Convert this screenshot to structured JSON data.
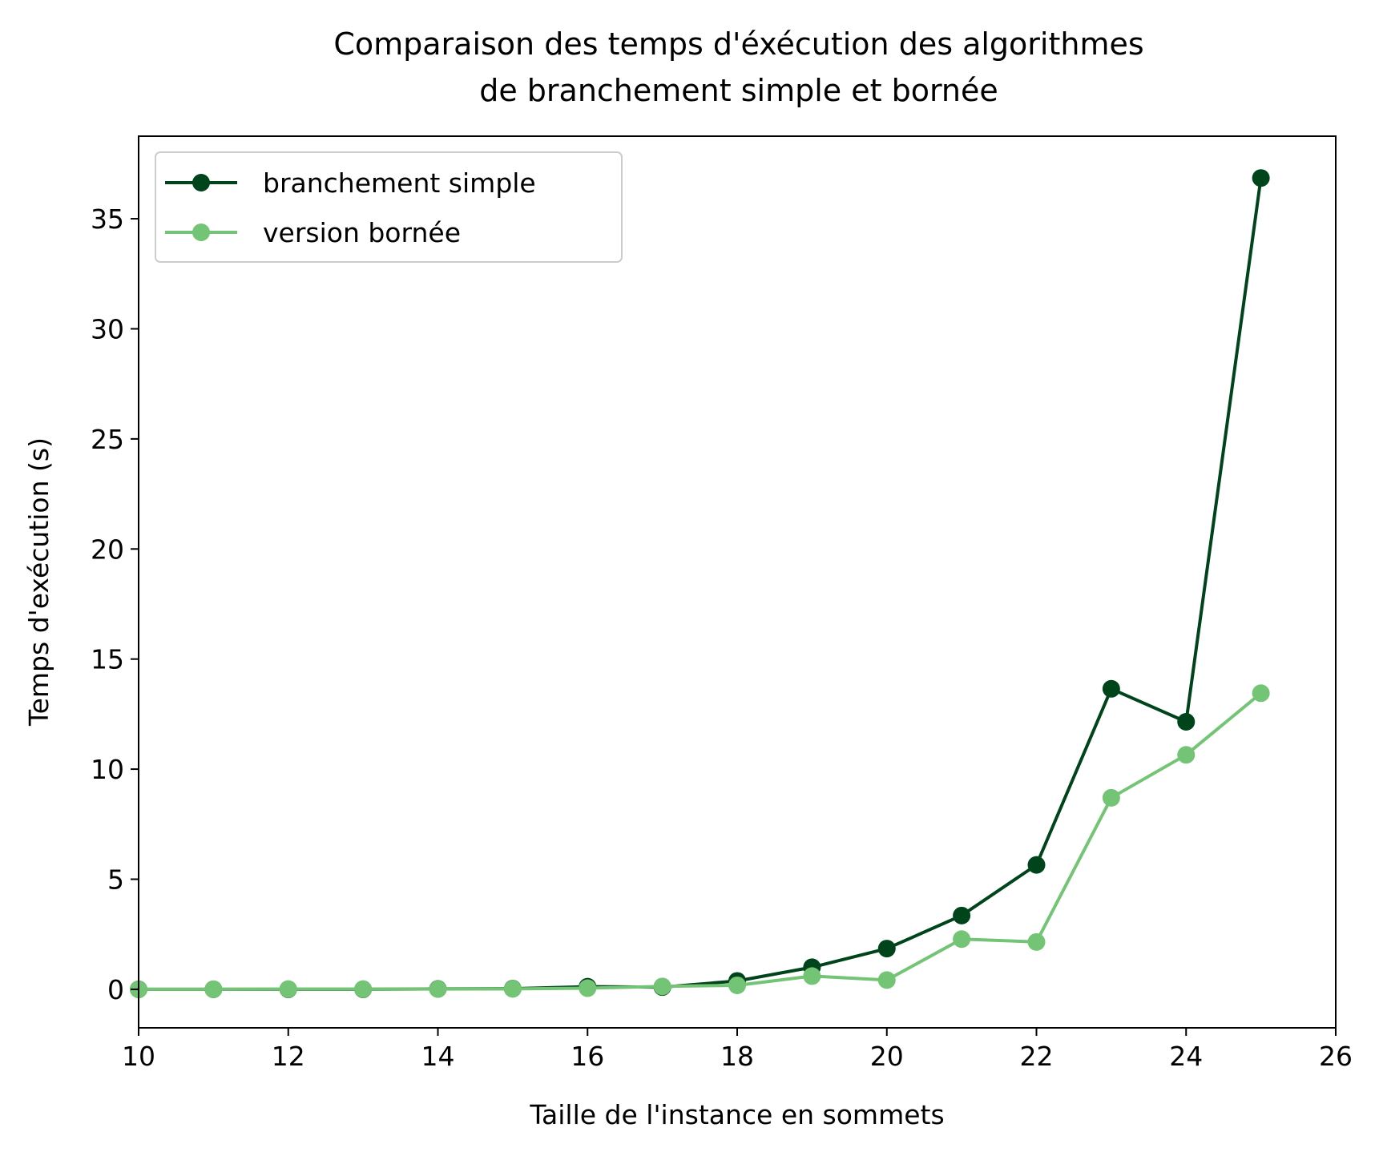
{
  "chart_data": {
    "type": "line",
    "title_line1": "Comparaison des temps d'éxécution des algorithmes",
    "title_line2": "de branchement simple et bornée",
    "xlabel": "Taille de l'instance en sommets",
    "ylabel": "Temps d'exécution (s)",
    "xlim": [
      10,
      26
    ],
    "ylim": [
      -1.75,
      38.75
    ],
    "xticks": [
      10,
      12,
      14,
      16,
      18,
      20,
      22,
      24,
      26
    ],
    "yticks": [
      0,
      5,
      10,
      15,
      20,
      25,
      30,
      35
    ],
    "grid": false,
    "legend_position": "upper-left",
    "x": [
      10,
      11,
      12,
      13,
      14,
      15,
      16,
      17,
      18,
      19,
      20,
      21,
      22,
      23,
      24,
      25
    ],
    "series": [
      {
        "name": "branchement simple",
        "color": "#00441b",
        "values": [
          0.0,
          0.0,
          0.0,
          0.0,
          0.02,
          0.03,
          0.12,
          0.1,
          0.38,
          1.0,
          1.85,
          3.35,
          5.65,
          13.65,
          12.15,
          36.85
        ]
      },
      {
        "name": "version bornée",
        "color": "#74c476",
        "values": [
          0.0,
          0.0,
          0.01,
          0.01,
          0.01,
          0.02,
          0.05,
          0.13,
          0.18,
          0.6,
          0.42,
          2.28,
          2.15,
          8.7,
          10.65,
          13.45
        ]
      }
    ]
  }
}
